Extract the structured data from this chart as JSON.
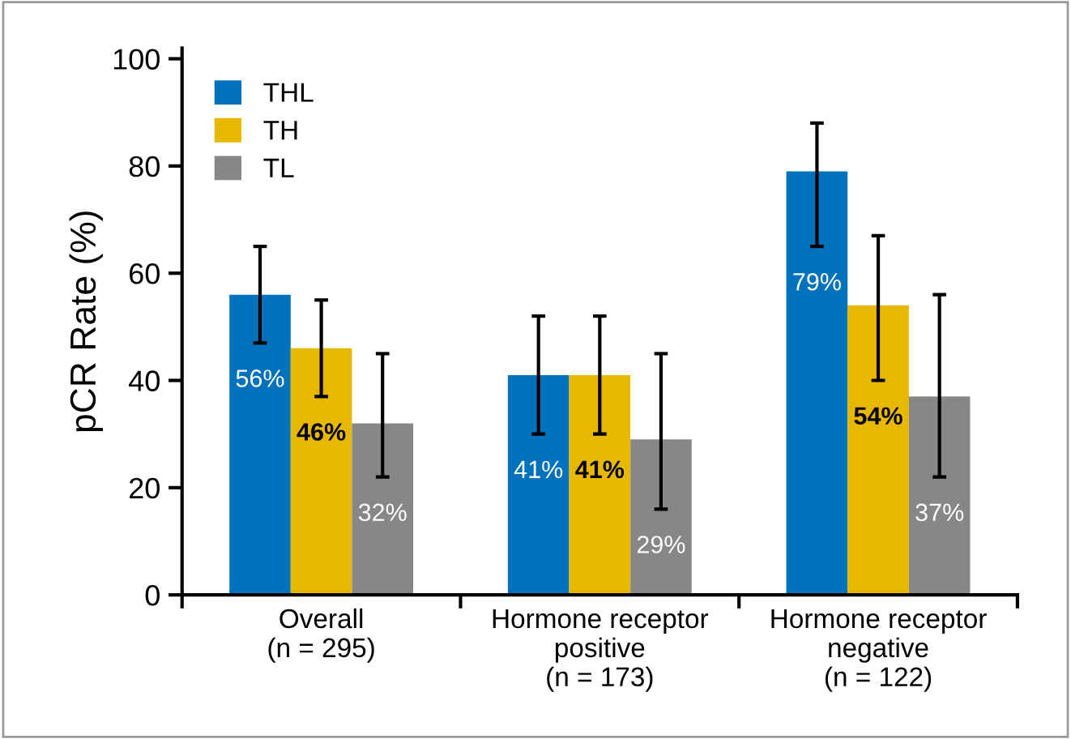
{
  "chart_data": {
    "type": "bar",
    "ylabel": "pCR Rate (%)",
    "categories": [
      "Overall\n(n = 295)",
      "Hormone receptor\npositive\n(n = 173)",
      "Hormone receptor\nnegative\n(n = 122)"
    ],
    "series": [
      {
        "name": "THL",
        "color": "#0072bc",
        "values": [
          56,
          41,
          79
        ],
        "errors": [
          [
            47,
            65
          ],
          [
            30,
            52
          ],
          [
            65,
            88
          ]
        ],
        "value_labels": [
          "56%",
          "41%",
          "79%"
        ]
      },
      {
        "name": "TH",
        "color": "#e8b800",
        "values": [
          46,
          41,
          54
        ],
        "errors": [
          [
            37,
            55
          ],
          [
            30,
            52
          ],
          [
            40,
            67
          ]
        ],
        "value_labels": [
          "46%",
          "41%",
          "54%"
        ]
      },
      {
        "name": "TL",
        "color": "#878787",
        "values": [
          32,
          29,
          37
        ],
        "errors": [
          [
            22,
            45
          ],
          [
            16,
            45
          ],
          [
            22,
            56
          ]
        ],
        "value_labels": [
          "32%",
          "29%",
          "37%"
        ]
      }
    ],
    "ylim": [
      0,
      102
    ],
    "yticks": [
      0,
      20,
      40,
      60,
      80,
      100
    ],
    "grid": false,
    "legend": "top left"
  }
}
